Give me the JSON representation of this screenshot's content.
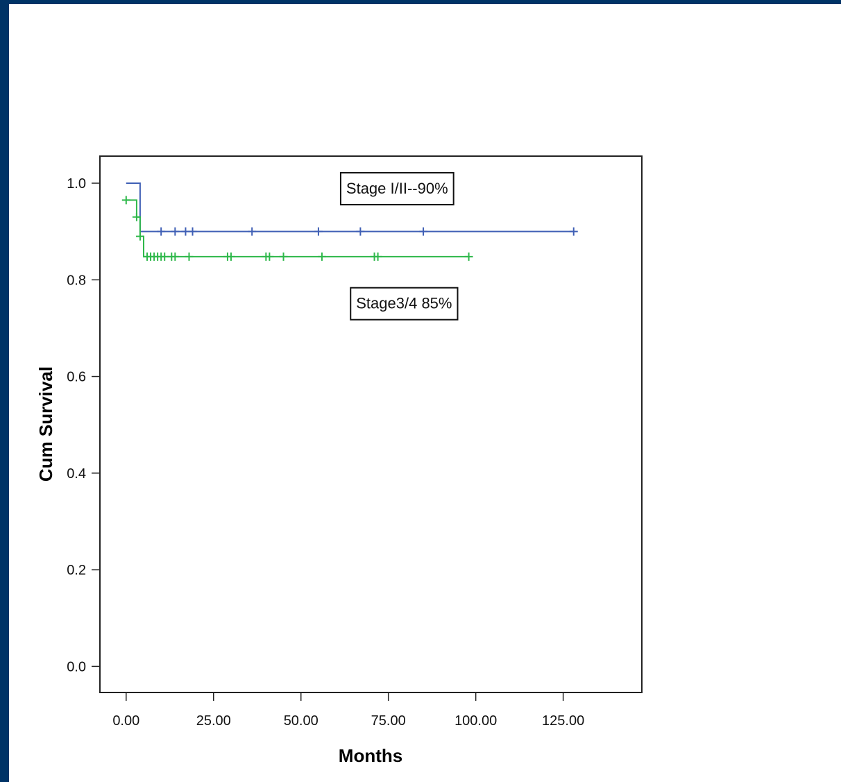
{
  "chart_data": {
    "type": "line",
    "title": "",
    "xlabel": "Months",
    "ylabel": "Cum Survival",
    "xlim": [
      -7.5,
      147.5
    ],
    "ylim": [
      -0.054,
      1.056
    ],
    "x_ticks": [
      0,
      25,
      50,
      75,
      100,
      125
    ],
    "x_tick_labels": [
      "0.00",
      "25.00",
      "50.00",
      "75.00",
      "100.00",
      "125.00"
    ],
    "y_ticks": [
      0,
      0.2,
      0.4,
      0.6,
      0.8,
      1.0
    ],
    "y_tick_labels": [
      "0.0",
      "0.2",
      "0.4",
      "0.6",
      "0.8",
      "1.0"
    ],
    "grid": false,
    "series": [
      {
        "color": "#3f5fb5",
        "steps": [
          [
            0,
            1.0
          ],
          [
            4,
            1.0
          ],
          [
            4,
            0.9
          ],
          [
            128,
            0.9
          ]
        ],
        "censored": [
          [
            10,
            0.9
          ],
          [
            14,
            0.9
          ],
          [
            17,
            0.9
          ],
          [
            19,
            0.9
          ],
          [
            36,
            0.9
          ],
          [
            55,
            0.9
          ],
          [
            67,
            0.9
          ],
          [
            85,
            0.9
          ],
          [
            128,
            0.9
          ]
        ]
      },
      {
        "color": "#2eb84a",
        "steps": [
          [
            0,
            0.965
          ],
          [
            3,
            0.965
          ],
          [
            3,
            0.93
          ],
          [
            4,
            0.93
          ],
          [
            4,
            0.89
          ],
          [
            5,
            0.89
          ],
          [
            5,
            0.848
          ],
          [
            98,
            0.848
          ]
        ],
        "censored": [
          [
            0,
            0.965
          ],
          [
            3,
            0.93
          ],
          [
            4,
            0.89
          ],
          [
            6,
            0.848
          ],
          [
            7,
            0.848
          ],
          [
            8,
            0.848
          ],
          [
            9,
            0.848
          ],
          [
            10,
            0.848
          ],
          [
            11,
            0.848
          ],
          [
            13,
            0.848
          ],
          [
            14,
            0.848
          ],
          [
            18,
            0.848
          ],
          [
            29,
            0.848
          ],
          [
            30,
            0.848
          ],
          [
            40,
            0.848
          ],
          [
            41,
            0.848
          ],
          [
            45,
            0.848
          ],
          [
            56,
            0.848
          ],
          [
            71,
            0.848
          ],
          [
            72,
            0.848
          ],
          [
            98,
            0.848
          ]
        ]
      }
    ],
    "annotations": [
      {
        "text": "Stage I/II--90%",
        "x": 77.5,
        "y": 0.99
      },
      {
        "text": "Stage3/4 85%",
        "x": 79.5,
        "y": 0.752
      }
    ]
  }
}
